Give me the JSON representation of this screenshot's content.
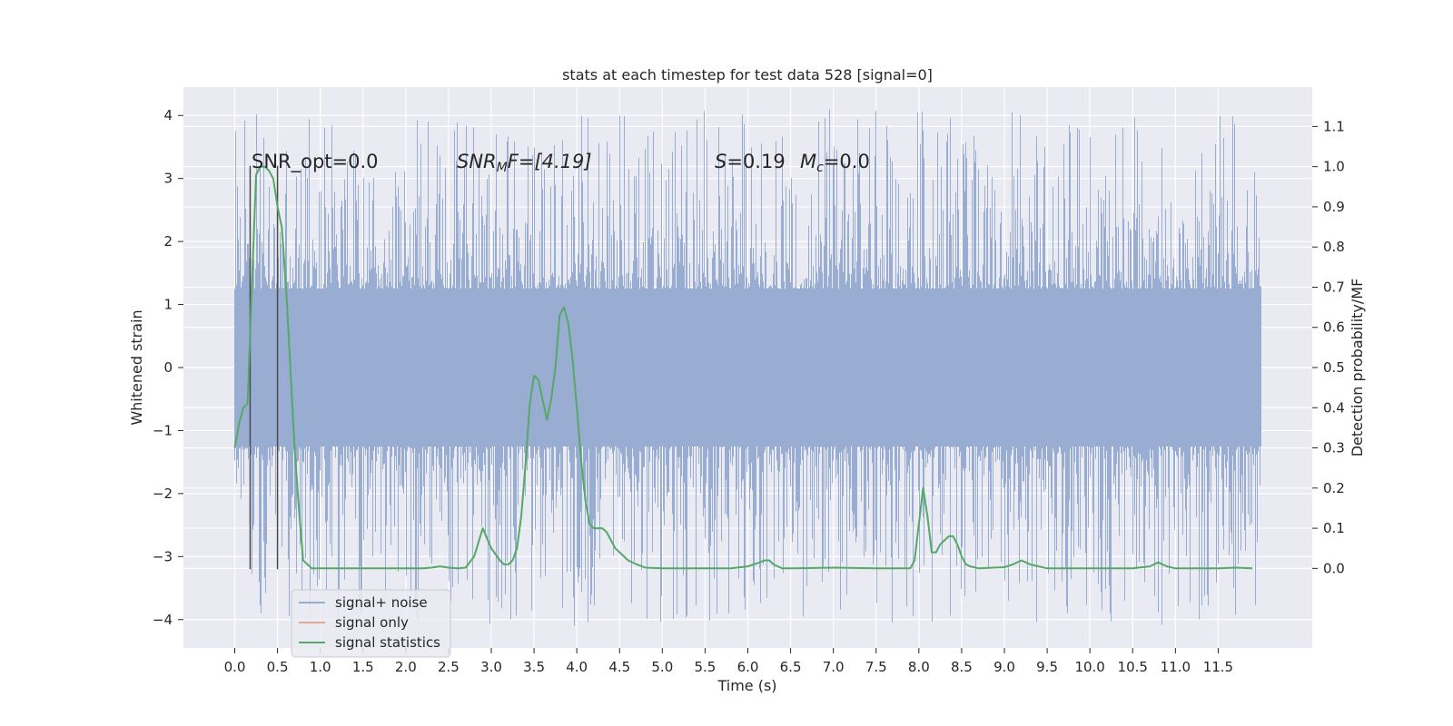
{
  "chart_data": {
    "type": "line",
    "title": "stats at each timestep for test data 528 [signal=0]",
    "xlabel": "Time (s)",
    "ylabel": "Whitened strain",
    "y2label": "Detection probability/MF",
    "xlim": [
      -0.6,
      12.6
    ],
    "ylim": [
      -4.45,
      4.45
    ],
    "y2lim": [
      -0.198,
      1.198
    ],
    "xticks": [
      "0.0",
      "0.5",
      "1.0",
      "1.5",
      "2.0",
      "2.5",
      "3.0",
      "3.5",
      "4.0",
      "4.5",
      "5.0",
      "5.5",
      "6.0",
      "6.5",
      "7.0",
      "7.5",
      "8.0",
      "8.5",
      "9.0",
      "9.5",
      "10.0",
      "10.5",
      "11.0",
      "11.5"
    ],
    "yticks": [
      "−4",
      "−3",
      "−2",
      "−1",
      "0",
      "1",
      "2",
      "3",
      "4"
    ],
    "y2ticks": [
      "0.0",
      "0.1",
      "0.2",
      "0.3",
      "0.4",
      "0.5",
      "0.6",
      "0.7",
      "0.8",
      "0.9",
      "1.0",
      "1.1"
    ],
    "grid": true,
    "legend_position": "lower-left",
    "annotations": {
      "snr_opt": "SNR_opt=0.0",
      "snr_mf_sym": "SNR",
      "snr_mf_sub": "M",
      "snr_mf_rest": "F=[4.19]",
      "s_sym": "S",
      "s_rest": "=0.19",
      "mc_sym": "M",
      "mc_sub": "c",
      "mc_rest": "=0.0"
    },
    "noise_envelope": {
      "x_range": [
        0.0,
        12.0
      ],
      "dense_band": [
        -1.25,
        1.25
      ],
      "max_abs_spike": 4.1
    },
    "vertical_markers": {
      "x": [
        0.18,
        0.5
      ],
      "y_range": [
        -3.2,
        3.2
      ]
    },
    "series": [
      {
        "name": "signal+ noise",
        "color": "#99acd2"
      },
      {
        "name": "signal only",
        "color": "#e4a890",
        "values": []
      },
      {
        "name": "signal statistics",
        "color": "#55a868",
        "axis": "right",
        "x": [
          0.0,
          0.05,
          0.1,
          0.15,
          0.2,
          0.25,
          0.3,
          0.35,
          0.4,
          0.45,
          0.5,
          0.55,
          0.6,
          0.65,
          0.7,
          0.75,
          0.8,
          0.9,
          1.0,
          1.5,
          2.0,
          2.2,
          2.3,
          2.4,
          2.5,
          2.6,
          2.7,
          2.8,
          2.9,
          3.0,
          3.1,
          3.15,
          3.2,
          3.25,
          3.3,
          3.35,
          3.4,
          3.45,
          3.5,
          3.55,
          3.6,
          3.65,
          3.7,
          3.75,
          3.8,
          3.85,
          3.9,
          3.95,
          4.0,
          4.05,
          4.1,
          4.15,
          4.2,
          4.25,
          4.3,
          4.35,
          4.4,
          4.45,
          4.5,
          4.6,
          4.7,
          4.8,
          5.0,
          5.5,
          5.8,
          6.0,
          6.1,
          6.2,
          6.25,
          6.3,
          6.35,
          6.4,
          6.5,
          7.0,
          7.5,
          7.9,
          7.95,
          8.0,
          8.05,
          8.1,
          8.15,
          8.2,
          8.25,
          8.3,
          8.35,
          8.4,
          8.45,
          8.5,
          8.55,
          8.6,
          8.7,
          9.0,
          9.1,
          9.2,
          9.3,
          9.4,
          9.5,
          10.0,
          10.5,
          10.7,
          10.8,
          10.9,
          11.0,
          11.5,
          11.7,
          11.9
        ],
        "values": [
          0.3,
          0.36,
          0.4,
          0.41,
          0.7,
          0.98,
          1.0,
          1.0,
          0.99,
          0.97,
          0.9,
          0.85,
          0.7,
          0.5,
          0.3,
          0.15,
          0.02,
          0.0,
          0.0,
          0.0,
          0.0,
          0.0,
          0.002,
          0.005,
          0.002,
          0.0,
          0.002,
          0.03,
          0.1,
          0.05,
          0.02,
          0.01,
          0.01,
          0.02,
          0.05,
          0.13,
          0.26,
          0.41,
          0.48,
          0.47,
          0.42,
          0.37,
          0.42,
          0.5,
          0.63,
          0.65,
          0.61,
          0.52,
          0.4,
          0.27,
          0.17,
          0.11,
          0.1,
          0.1,
          0.1,
          0.09,
          0.07,
          0.05,
          0.04,
          0.02,
          0.01,
          0.002,
          0.0,
          0.0,
          0.0,
          0.005,
          0.012,
          0.02,
          0.02,
          0.01,
          0.005,
          0.0,
          0.0,
          0.002,
          0.0,
          0.0,
          0.02,
          0.11,
          0.2,
          0.13,
          0.04,
          0.04,
          0.06,
          0.07,
          0.08,
          0.08,
          0.06,
          0.03,
          0.01,
          0.005,
          0.0,
          0.003,
          0.01,
          0.02,
          0.01,
          0.005,
          0.0,
          0.0,
          0.0,
          0.005,
          0.015,
          0.005,
          0.0,
          0.0,
          0.002,
          0.0
        ]
      }
    ]
  }
}
